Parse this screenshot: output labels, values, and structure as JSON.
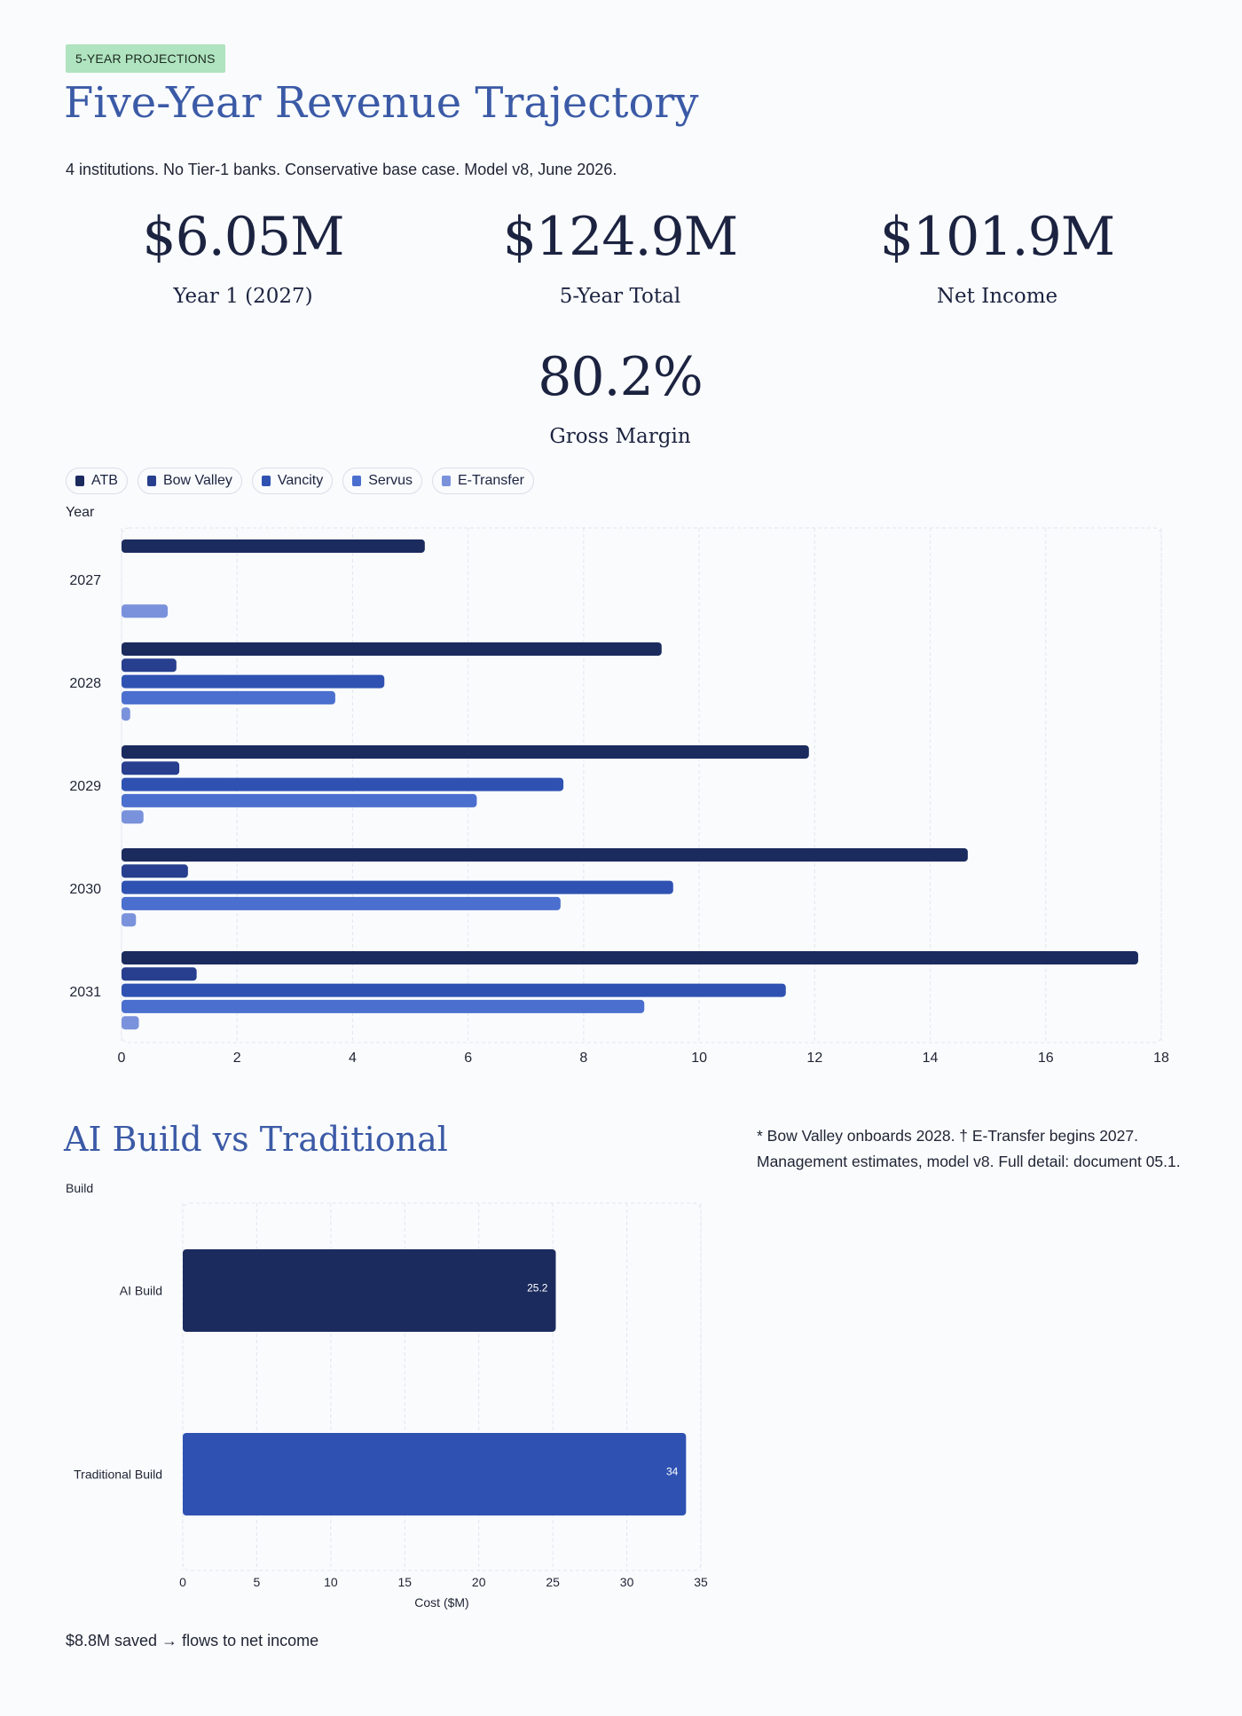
{
  "header": {
    "badge": "5-YEAR PROJECTIONS",
    "title": "Five-Year Revenue Trajectory",
    "subtitle": "4 institutions. No Tier-1 banks. Conservative base case. Model v8, June 2026."
  },
  "kpis": [
    {
      "value": "$6.05M",
      "label": "Year 1 (2027)"
    },
    {
      "value": "$124.9M",
      "label": "5-Year Total"
    },
    {
      "value": "$101.9M",
      "label": "Net Income"
    },
    {
      "value": "80.2%",
      "label": "Gross Margin"
    }
  ],
  "chart_data": [
    {
      "type": "bar",
      "orientation": "horizontal",
      "ylabel": "Year",
      "categories": [
        "2027",
        "2028",
        "2029",
        "2030",
        "2031"
      ],
      "xlim": [
        0,
        18
      ],
      "xticks": [
        0,
        2,
        4,
        6,
        8,
        10,
        12,
        14,
        16,
        18
      ],
      "grid": true,
      "legend_position": "top-left",
      "series": [
        {
          "name": "ATB",
          "color": "#1c2b5e",
          "values": [
            5.25,
            9.35,
            11.9,
            14.65,
            17.6
          ]
        },
        {
          "name": "Bow Valley",
          "color": "#273f8e",
          "values": [
            0,
            0.95,
            1.0,
            1.15,
            1.3
          ]
        },
        {
          "name": "Vancity",
          "color": "#2f52b2",
          "values": [
            0,
            4.55,
            7.65,
            9.55,
            11.5
          ]
        },
        {
          "name": "Servus",
          "color": "#4b6fce",
          "values": [
            0,
            3.7,
            6.15,
            7.6,
            9.05
          ]
        },
        {
          "name": "E-Transfer",
          "color": "#7a92dc",
          "values": [
            0.8,
            0.15,
            0.38,
            0.25,
            0.3
          ]
        }
      ]
    },
    {
      "type": "bar",
      "orientation": "horizontal",
      "title": "AI Build vs Traditional",
      "ylabel": "Build",
      "xlabel": "Cost ($M)",
      "categories": [
        "AI Build",
        "Traditional Build"
      ],
      "values": [
        25.2,
        34
      ],
      "colors": [
        "#1c2b5e",
        "#2f52b2"
      ],
      "xlim": [
        0,
        35
      ],
      "xticks": [
        0,
        5,
        10,
        15,
        20,
        25,
        30,
        35
      ],
      "grid": true
    }
  ],
  "section2": {
    "note": "* Bow Valley onboards 2028. † E-Transfer begins 2027. Management estimates, model v8. Full detail: document 05.1.",
    "saved": "$8.8M saved → flows to net income"
  }
}
